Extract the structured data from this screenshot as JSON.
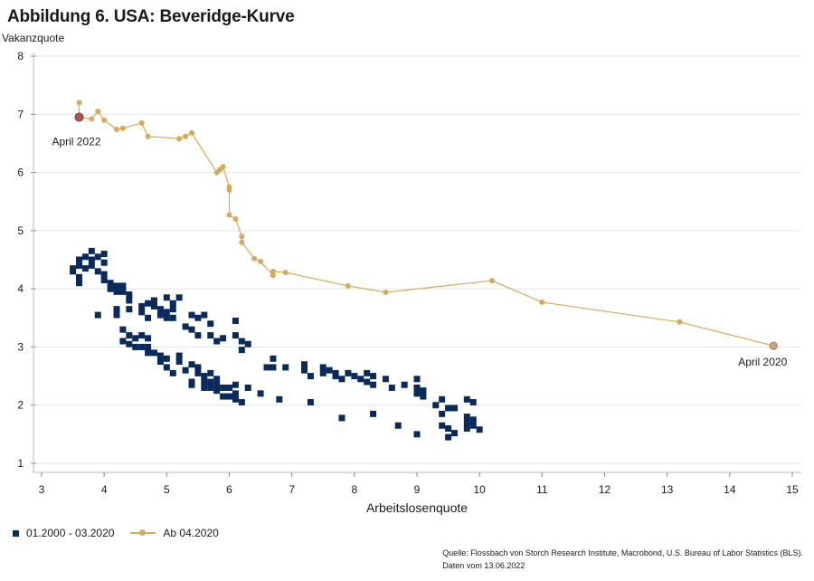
{
  "title": "Abbildung 6. USA: Beveridge-Kurve",
  "legend": {
    "series1": "01.2000 - 03.2020",
    "series2": "Ab 04.2020"
  },
  "source": {
    "line1": "Quelle: Flossbach von Storch Research Institute, Macrobond, U.S. Bureau of Labor Statistics (BLS).",
    "line2": "Daten vom 13.06.2022"
  },
  "colors": {
    "series1": "#0a2a5c",
    "series2": "#d8a95b",
    "highlight": "#c0504d",
    "grid": "#e3e3e3"
  },
  "chart_data": {
    "type": "scatter",
    "title": "Abbildung 6. USA: Beveridge-Kurve",
    "xlabel": "Arbeitslosenquote",
    "ylabel": "Vakanzquote",
    "xlim": [
      3,
      15
    ],
    "ylim": [
      1,
      8
    ],
    "xticks": [
      3,
      4,
      5,
      6,
      7,
      8,
      9,
      10,
      11,
      12,
      13,
      14,
      15
    ],
    "yticks": [
      1,
      2,
      3,
      4,
      5,
      6,
      7,
      8
    ],
    "grid": "horizontal",
    "legend_position": "bottom-left",
    "annotations": [
      {
        "text": "April 2022",
        "x": 3.6,
        "y": 6.95
      },
      {
        "text": "April 2020",
        "x": 14.7,
        "y": 3.02
      }
    ],
    "series": [
      {
        "name": "01.2000 - 03.2020",
        "marker": "square",
        "points": [
          [
            3.5,
            4.3
          ],
          [
            3.5,
            4.35
          ],
          [
            3.6,
            4.1
          ],
          [
            3.6,
            4.2
          ],
          [
            3.6,
            4.4
          ],
          [
            3.6,
            4.5
          ],
          [
            3.7,
            4.35
          ],
          [
            3.7,
            4.55
          ],
          [
            3.8,
            4.4
          ],
          [
            3.8,
            4.5
          ],
          [
            3.8,
            4.65
          ],
          [
            3.9,
            4.3
          ],
          [
            3.9,
            4.55
          ],
          [
            4.0,
            4.45
          ],
          [
            4.0,
            4.6
          ],
          [
            4.0,
            4.25
          ],
          [
            4.0,
            4.15
          ],
          [
            4.1,
            4.1
          ],
          [
            4.1,
            4.0
          ],
          [
            4.2,
            4.05
          ],
          [
            4.2,
            3.95
          ],
          [
            4.3,
            4.05
          ],
          [
            4.3,
            3.95
          ],
          [
            4.4,
            3.9
          ],
          [
            4.4,
            3.8
          ],
          [
            4.2,
            3.65
          ],
          [
            4.2,
            3.55
          ],
          [
            4.4,
            3.65
          ],
          [
            3.9,
            3.55
          ],
          [
            4.6,
            3.7
          ],
          [
            4.6,
            3.6
          ],
          [
            4.7,
            3.75
          ],
          [
            4.7,
            3.5
          ],
          [
            4.8,
            3.8
          ],
          [
            4.8,
            3.7
          ],
          [
            4.9,
            3.65
          ],
          [
            4.9,
            3.55
          ],
          [
            5.0,
            3.85
          ],
          [
            5.0,
            3.5
          ],
          [
            5.0,
            3.6
          ],
          [
            5.1,
            3.75
          ],
          [
            5.1,
            3.65
          ],
          [
            5.1,
            3.5
          ],
          [
            5.2,
            3.85
          ],
          [
            5.3,
            3.35
          ],
          [
            5.4,
            3.55
          ],
          [
            5.4,
            3.3
          ],
          [
            5.5,
            3.5
          ],
          [
            5.5,
            3.2
          ],
          [
            5.6,
            3.55
          ],
          [
            5.7,
            3.4
          ],
          [
            5.7,
            3.2
          ],
          [
            5.8,
            3.1
          ],
          [
            5.9,
            3.15
          ],
          [
            6.1,
            3.45
          ],
          [
            6.1,
            3.2
          ],
          [
            6.2,
            3.1
          ],
          [
            6.3,
            3.05
          ],
          [
            6.2,
            2.95
          ],
          [
            4.3,
            3.3
          ],
          [
            4.3,
            3.1
          ],
          [
            4.4,
            3.2
          ],
          [
            4.4,
            3.05
          ],
          [
            4.5,
            3.15
          ],
          [
            4.5,
            3.0
          ],
          [
            4.6,
            3.2
          ],
          [
            4.6,
            3.0
          ],
          [
            4.7,
            3.15
          ],
          [
            4.7,
            3.0
          ],
          [
            4.7,
            2.9
          ],
          [
            4.8,
            2.9
          ],
          [
            4.9,
            2.85
          ],
          [
            4.9,
            2.75
          ],
          [
            5.0,
            2.8
          ],
          [
            5.0,
            2.65
          ],
          [
            5.1,
            2.55
          ],
          [
            5.2,
            2.75
          ],
          [
            5.2,
            2.85
          ],
          [
            5.3,
            2.6
          ],
          [
            5.4,
            2.7
          ],
          [
            5.4,
            2.4
          ],
          [
            5.4,
            2.35
          ],
          [
            5.5,
            2.65
          ],
          [
            5.5,
            2.55
          ],
          [
            5.6,
            2.5
          ],
          [
            5.6,
            2.4
          ],
          [
            5.6,
            2.3
          ],
          [
            5.7,
            2.55
          ],
          [
            5.7,
            2.4
          ],
          [
            5.7,
            2.3
          ],
          [
            5.8,
            2.45
          ],
          [
            5.8,
            2.35
          ],
          [
            5.8,
            2.25
          ],
          [
            5.9,
            2.3
          ],
          [
            5.9,
            2.15
          ],
          [
            6.0,
            2.3
          ],
          [
            6.0,
            2.15
          ],
          [
            6.1,
            2.2
          ],
          [
            6.1,
            2.1
          ],
          [
            6.1,
            2.35
          ],
          [
            6.2,
            2.05
          ],
          [
            6.3,
            2.3
          ],
          [
            6.5,
            2.2
          ],
          [
            6.8,
            2.1
          ],
          [
            6.6,
            2.65
          ],
          [
            6.7,
            2.65
          ],
          [
            6.7,
            2.8
          ],
          [
            6.9,
            2.65
          ],
          [
            7.2,
            2.7
          ],
          [
            7.2,
            2.6
          ],
          [
            7.3,
            2.5
          ],
          [
            7.3,
            2.05
          ],
          [
            7.5,
            2.65
          ],
          [
            7.5,
            2.55
          ],
          [
            7.6,
            2.6
          ],
          [
            7.7,
            2.55
          ],
          [
            7.7,
            2.5
          ],
          [
            7.8,
            2.45
          ],
          [
            7.8,
            1.78
          ],
          [
            7.9,
            2.55
          ],
          [
            8.0,
            2.5
          ],
          [
            8.1,
            2.45
          ],
          [
            8.2,
            2.55
          ],
          [
            8.2,
            2.4
          ],
          [
            8.3,
            2.5
          ],
          [
            8.3,
            2.35
          ],
          [
            8.3,
            1.85
          ],
          [
            8.5,
            2.45
          ],
          [
            8.6,
            2.3
          ],
          [
            8.7,
            1.65
          ],
          [
            8.8,
            2.35
          ],
          [
            9.0,
            2.45
          ],
          [
            9.0,
            2.3
          ],
          [
            9.0,
            2.2
          ],
          [
            9.0,
            1.5
          ],
          [
            9.1,
            2.25
          ],
          [
            9.1,
            2.15
          ],
          [
            9.3,
            2.0
          ],
          [
            9.4,
            2.1
          ],
          [
            9.4,
            1.85
          ],
          [
            9.4,
            1.65
          ],
          [
            9.5,
            1.95
          ],
          [
            9.5,
            1.6
          ],
          [
            9.5,
            1.45
          ],
          [
            9.6,
            1.95
          ],
          [
            9.6,
            1.52
          ],
          [
            9.8,
            2.1
          ],
          [
            9.8,
            1.8
          ],
          [
            9.8,
            1.7
          ],
          [
            9.8,
            1.6
          ],
          [
            9.9,
            2.05
          ],
          [
            9.9,
            1.75
          ],
          [
            9.9,
            1.65
          ],
          [
            10.0,
            1.58
          ]
        ]
      },
      {
        "name": "Ab 04.2020",
        "marker": "line-circle",
        "points": [
          [
            14.7,
            3.02
          ],
          [
            13.2,
            3.43
          ],
          [
            11.0,
            3.77
          ],
          [
            10.2,
            4.14
          ],
          [
            8.5,
            3.94
          ],
          [
            7.9,
            4.05
          ],
          [
            6.9,
            4.28
          ],
          [
            6.7,
            4.3
          ],
          [
            6.7,
            4.23
          ],
          [
            6.5,
            4.47
          ],
          [
            6.4,
            4.52
          ],
          [
            6.2,
            4.8
          ],
          [
            6.2,
            4.9
          ],
          [
            6.1,
            5.2
          ],
          [
            6.0,
            5.27
          ],
          [
            6.0,
            5.7
          ],
          [
            6.0,
            5.75
          ],
          [
            5.9,
            6.1
          ],
          [
            5.85,
            6.05
          ],
          [
            5.8,
            6.0
          ],
          [
            5.4,
            6.68
          ],
          [
            5.3,
            6.62
          ],
          [
            5.2,
            6.58
          ],
          [
            4.7,
            6.62
          ],
          [
            4.6,
            6.85
          ],
          [
            4.3,
            6.76
          ],
          [
            4.2,
            6.74
          ],
          [
            4.0,
            6.9
          ],
          [
            3.9,
            7.05
          ],
          [
            3.8,
            6.92
          ],
          [
            3.6,
            6.95
          ],
          [
            3.6,
            7.2
          ]
        ]
      }
    ]
  }
}
